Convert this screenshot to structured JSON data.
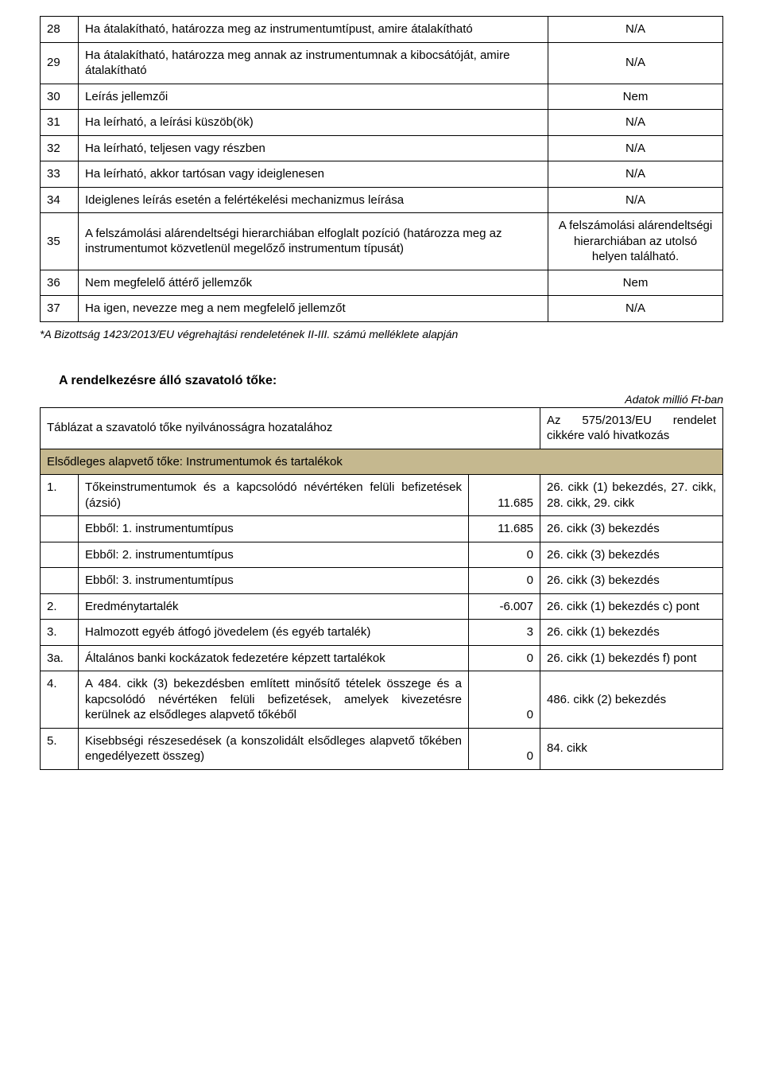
{
  "colors": {
    "header_bg": "#c5b88f",
    "border": "#000000",
    "text": "#000000",
    "page_bg": "#ffffff"
  },
  "table1": {
    "rows": [
      {
        "n": "28",
        "desc": "Ha átalakítható, határozza meg az instrumentumtípust, amire átalakítható",
        "val": "N/A"
      },
      {
        "n": "29",
        "desc": "Ha átalakítható, határozza meg annak az instrumentumnak a kibocsátóját, amire átalakítható",
        "val": "N/A"
      },
      {
        "n": "30",
        "desc": "Leírás jellemzői",
        "val": "Nem"
      },
      {
        "n": "31",
        "desc": "Ha leírható, a leírási küszöb(ök)",
        "val": "N/A"
      },
      {
        "n": "32",
        "desc": "Ha leírható, teljesen vagy részben",
        "val": "N/A"
      },
      {
        "n": "33",
        "desc": "Ha leírható, akkor tartósan vagy ideiglenesen",
        "val": "N/A"
      },
      {
        "n": "34",
        "desc": "Ideiglenes leírás esetén a felértékelési mechanizmus leírása",
        "val": "N/A"
      },
      {
        "n": "35",
        "desc": "A felszámolási alárendeltségi hierarchiában elfoglalt pozíció (határozza meg az instrumentumot közvetlenül megelőző instrumentum típusát)",
        "val": "A felszámolási alárendeltségi hierarchiában az utolsó helyen található."
      },
      {
        "n": "36",
        "desc": "Nem megfelelő áttérő jellemzők",
        "val": "Nem"
      },
      {
        "n": "37",
        "desc": "Ha igen, nevezze meg a nem megfelelő jellemzőt",
        "val": "N/A"
      }
    ],
    "footnote": "*A Bizottság 1423/2013/EU végrehajtási rendeletének II-III. számú melléklete alapján"
  },
  "section2": {
    "title": "A rendelkezésre álló szavatoló tőke:",
    "data_note": "Adatok millió Ft-ban",
    "header_left": "Táblázat a szavatoló tőke nyilvánosságra hozatalához",
    "header_right": "Az 575/2013/EU rendelet cikkére való hivatkozás",
    "subheader": "Elsődleges alapvető tőke: Instrumentumok és tartalékok",
    "rows": [
      {
        "n": "1.",
        "desc": "Tőkeinstrumentumok és a kapcsolódó névértéken felüli befizetések (ázsió)",
        "val": "11.685",
        "ref": "26. cikk (1) bekezdés, 27. cikk, 28. cikk, 29. cikk"
      },
      {
        "n": "",
        "desc": "Ebből: 1. instrumentumtípus",
        "val": "11.685",
        "ref": "26. cikk (3) bekezdés"
      },
      {
        "n": "",
        "desc": "Ebből: 2. instrumentumtípus",
        "val": "0",
        "ref": "26. cikk (3) bekezdés"
      },
      {
        "n": "",
        "desc": "Ebből: 3. instrumentumtípus",
        "val": "0",
        "ref": "26. cikk (3) bekezdés"
      },
      {
        "n": "2.",
        "desc": "Eredménytartalék",
        "val": "-6.007",
        "ref": "26. cikk (1) bekezdés c) pont"
      },
      {
        "n": "3.",
        "desc": "Halmozott egyéb átfogó jövedelem (és egyéb tartalék)",
        "val": "3",
        "ref": "26. cikk (1) bekezdés"
      },
      {
        "n": "3a.",
        "desc": "Általános banki kockázatok fedezetére képzett tartalékok",
        "val": "0",
        "ref": "26. cikk (1) bekezdés f) pont"
      },
      {
        "n": "4.",
        "desc": "A 484. cikk (3) bekezdésben említett minősítő tételek összege és a kapcsolódó névértéken felüli befizetések, amelyek kivezetésre kerülnek az elsődleges alapvető tőkéből",
        "val": "0",
        "ref": "486. cikk (2) bekezdés"
      },
      {
        "n": "5.",
        "desc": "Kisebbségi részesedések (a konszolidált elsődleges alapvető tőkében engedélyezett összeg)",
        "val": "0",
        "ref": "84. cikk"
      }
    ]
  }
}
